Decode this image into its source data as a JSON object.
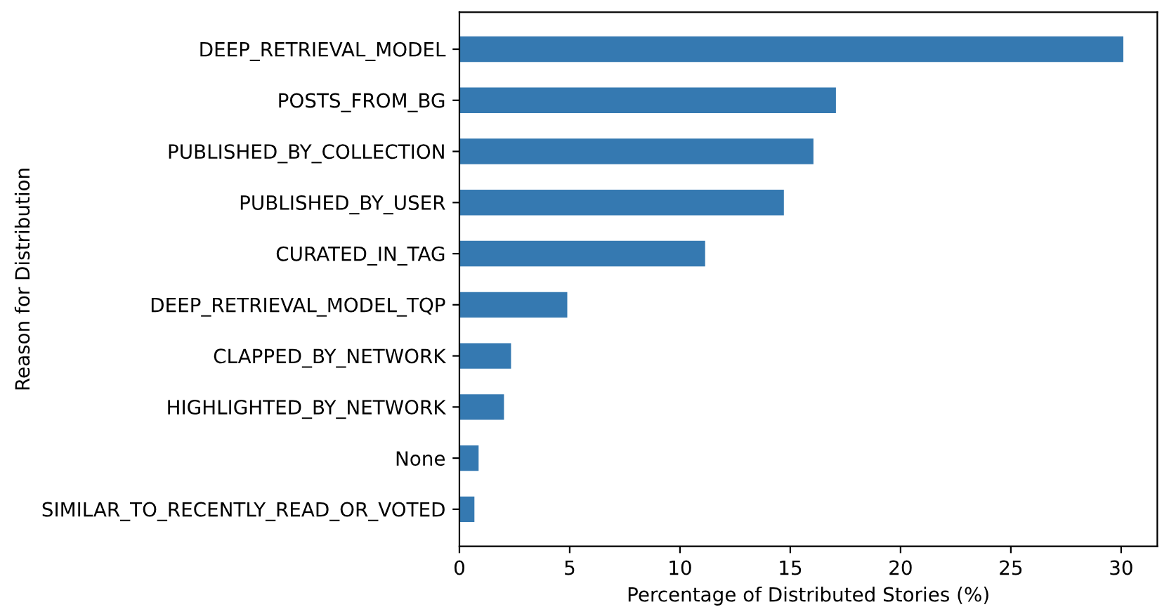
{
  "chart_data": {
    "type": "bar",
    "orientation": "horizontal",
    "xlabel": "Percentage of Distributed Stories (%)",
    "ylabel": "Reason for Distribution",
    "categories": [
      "DEEP_RETRIEVAL_MODEL",
      "POSTS_FROM_BG",
      "PUBLISHED_BY_COLLECTION",
      "PUBLISHED_BY_USER",
      "CURATED_IN_TAG",
      "DEEP_RETRIEVAL_MODEL_TQP",
      "CLAPPED_BY_NETWORK",
      "HIGHLIGHTED_BY_NETWORK",
      "None",
      "SIMILAR_TO_RECENTLY_READ_OR_VOTED"
    ],
    "values": [
      30.1,
      17.07,
      16.05,
      14.71,
      11.14,
      4.89,
      2.34,
      2.02,
      0.87,
      0.68
    ],
    "color": "#3579b1",
    "xlim": [
      0,
      31.64
    ],
    "xticks": [
      0,
      5,
      10,
      15,
      20,
      25,
      30
    ],
    "grid": false,
    "legend": false
  }
}
